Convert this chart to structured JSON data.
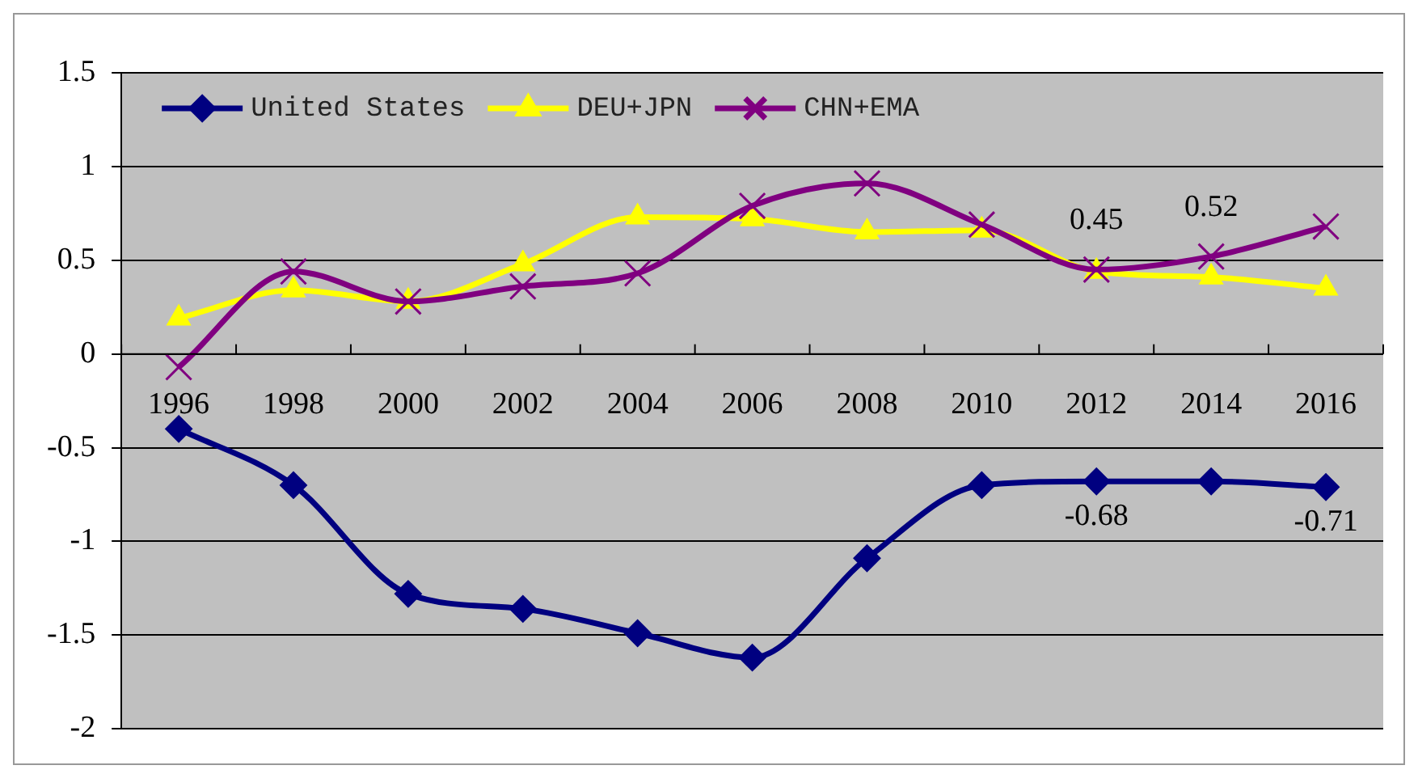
{
  "chart_data": {
    "type": "line",
    "categories": [
      "1996",
      "1998",
      "2000",
      "2002",
      "2004",
      "2006",
      "2008",
      "2010",
      "2012",
      "2014",
      "2016"
    ],
    "ylim": [
      -2,
      1.5
    ],
    "yticks": [
      -2,
      -1.5,
      -1,
      -0.5,
      0,
      0.5,
      1,
      1.5
    ],
    "grid": "y",
    "legend": "top left",
    "line_style": "solid",
    "series": [
      {
        "name": "United States",
        "color": "#000080",
        "marker": "diamond",
        "values": [
          -0.4,
          -0.7,
          -1.28,
          -1.36,
          -1.49,
          -1.62,
          -1.09,
          -0.7,
          -0.68,
          -0.68,
          -0.71
        ],
        "value_labels": [
          null,
          null,
          null,
          null,
          null,
          null,
          null,
          null,
          "-0.68",
          null,
          "-0.71"
        ]
      },
      {
        "name": "DEU+JPN",
        "color": "#ffff00",
        "marker": "triangle",
        "values": [
          0.19,
          0.34,
          0.28,
          0.48,
          0.73,
          0.72,
          0.65,
          0.66,
          0.44,
          0.41,
          0.35
        ]
      },
      {
        "name": "CHN+EMA",
        "color": "#800080",
        "marker": "cross",
        "values": [
          -0.07,
          0.44,
          0.28,
          0.36,
          0.43,
          0.79,
          0.91,
          0.69,
          0.45,
          0.52,
          0.68
        ],
        "value_labels": [
          null,
          null,
          null,
          null,
          null,
          null,
          null,
          null,
          "0.45",
          "0.52",
          null
        ]
      }
    ]
  }
}
